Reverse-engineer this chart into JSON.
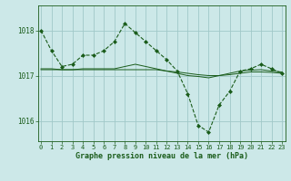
{
  "title": "Graphe pression niveau de la mer (hPa)",
  "bg_color": "#cce8e8",
  "grid_color": "#a0c8c8",
  "line_color": "#1a5c1a",
  "xlim": [
    -0.3,
    23.3
  ],
  "ylim": [
    1015.55,
    1018.55
  ],
  "yticks": [
    1016,
    1017,
    1018
  ],
  "xticks": [
    0,
    1,
    2,
    3,
    4,
    5,
    6,
    7,
    8,
    9,
    10,
    11,
    12,
    13,
    14,
    15,
    16,
    17,
    18,
    19,
    20,
    21,
    22,
    23
  ],
  "series1": [
    1018.0,
    1017.55,
    1017.2,
    1017.25,
    1017.45,
    1017.45,
    1017.55,
    1017.75,
    1018.15,
    1017.95,
    1017.75,
    1017.55,
    1017.35,
    1017.1,
    1016.6,
    1015.9,
    1015.75,
    1016.35,
    1016.65,
    1017.1,
    1017.15,
    1017.25,
    1017.15,
    1017.05
  ],
  "series2": [
    1017.15,
    1017.15,
    1017.13,
    1017.13,
    1017.15,
    1017.15,
    1017.15,
    1017.15,
    1017.2,
    1017.25,
    1017.2,
    1017.15,
    1017.1,
    1017.05,
    1017.0,
    1016.98,
    1016.95,
    1017.0,
    1017.05,
    1017.1,
    1017.12,
    1017.13,
    1017.1,
    1017.08
  ],
  "series3": [
    1017.13,
    1017.13,
    1017.13,
    1017.13,
    1017.13,
    1017.13,
    1017.13,
    1017.13,
    1017.13,
    1017.13,
    1017.13,
    1017.13,
    1017.1,
    1017.08,
    1017.05,
    1017.02,
    1017.0,
    1017.0,
    1017.02,
    1017.05,
    1017.08,
    1017.08,
    1017.07,
    1017.05
  ]
}
